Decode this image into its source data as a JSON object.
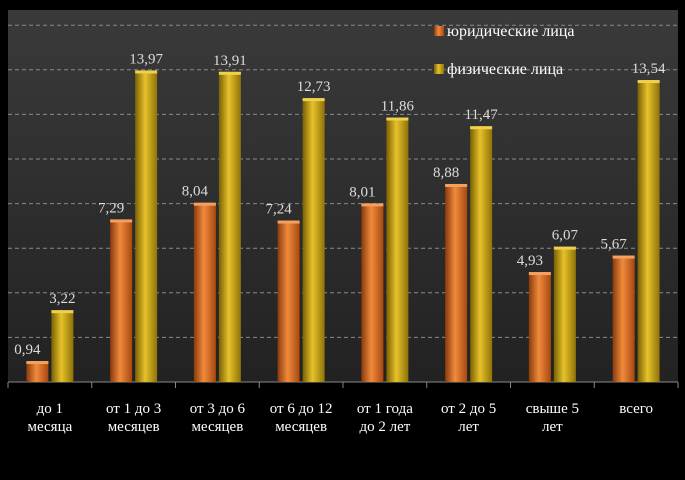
{
  "chart_data": {
    "type": "bar",
    "categories": [
      [
        "до 1",
        "месяца"
      ],
      [
        "от 1 до 3",
        "месяцев"
      ],
      [
        "от 3 до 6",
        "месяцев"
      ],
      [
        "от 6 до 12",
        "месяцев"
      ],
      [
        "от 1 года",
        "до 2 лет"
      ],
      [
        "от 2 до 5",
        "лет"
      ],
      [
        "свыше 5",
        "лет"
      ],
      [
        "всего"
      ]
    ],
    "series": [
      {
        "name": "юридические лица",
        "color": "#d2691e",
        "values": [
          0.94,
          7.29,
          8.04,
          7.24,
          8.01,
          8.88,
          4.93,
          5.67
        ],
        "labels": [
          "0,94",
          "7,29",
          "8,04",
          "7,24",
          "8,01",
          "8,88",
          "4,93",
          "5,67"
        ]
      },
      {
        "name": "физические лица",
        "color": "#b8960c",
        "values": [
          3.22,
          13.97,
          13.91,
          12.73,
          11.86,
          11.47,
          6.07,
          13.54
        ],
        "labels": [
          "3,22",
          "13,97",
          "13,91",
          "12,73",
          "11,86",
          "11,47",
          "6,07",
          "13,54"
        ]
      }
    ],
    "ylim": [
      0,
      16
    ],
    "grid": true,
    "legend_position": "top-right",
    "background": "#2b2b2b",
    "page_background": "#000000"
  }
}
